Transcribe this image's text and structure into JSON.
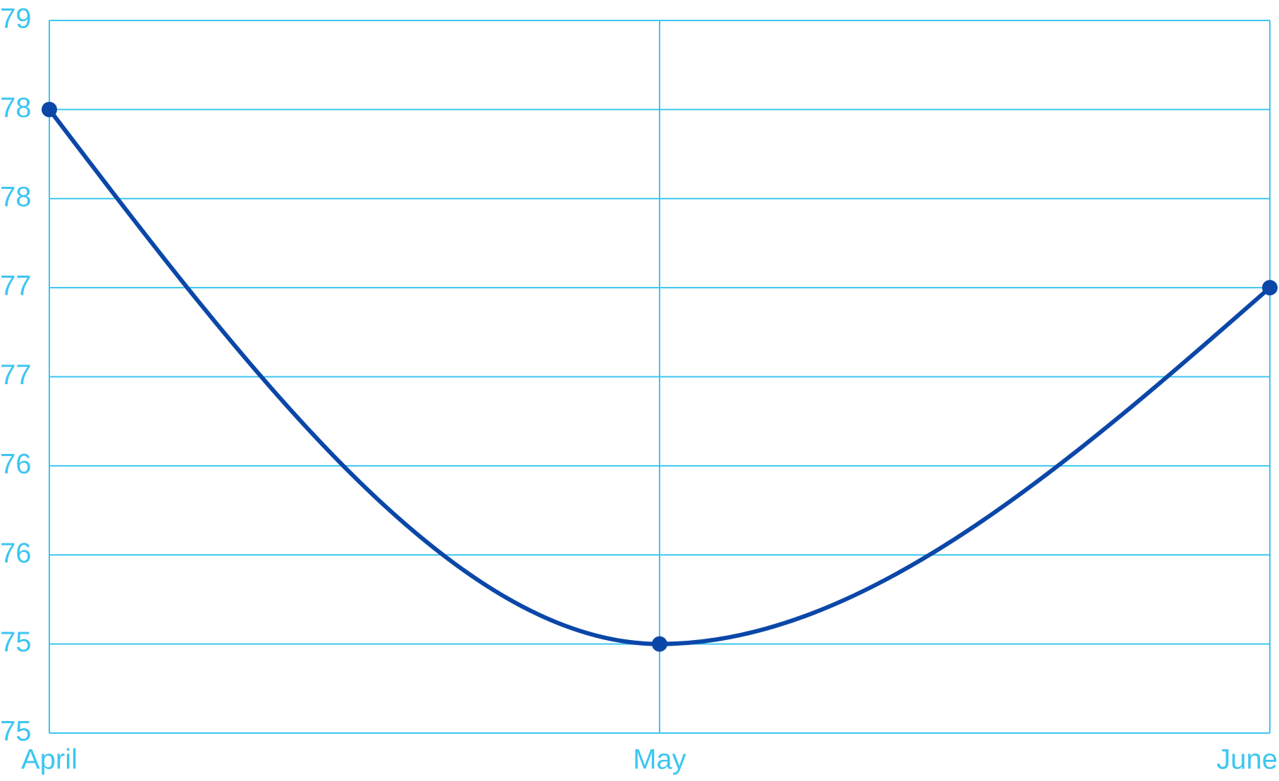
{
  "chart_data": {
    "type": "line",
    "categories": [
      "April",
      "May",
      "June"
    ],
    "series": [
      {
        "color": "#0b47a8",
        "values": [
          78,
          75,
          77
        ]
      }
    ],
    "ylim": [
      74.5,
      78.5
    ],
    "yticks": [
      {
        "value": 74.5,
        "label": "75"
      },
      {
        "value": 75,
        "label": "75"
      },
      {
        "value": 75.5,
        "label": "76"
      },
      {
        "value": 76,
        "label": "76"
      },
      {
        "value": 76.5,
        "label": "77"
      },
      {
        "value": 77,
        "label": "77"
      },
      {
        "value": 77.5,
        "label": "78"
      },
      {
        "value": 78,
        "label": "78"
      },
      {
        "value": 78.5,
        "label": "79"
      }
    ],
    "grid": true,
    "grid_color": "#3cc6f0"
  }
}
